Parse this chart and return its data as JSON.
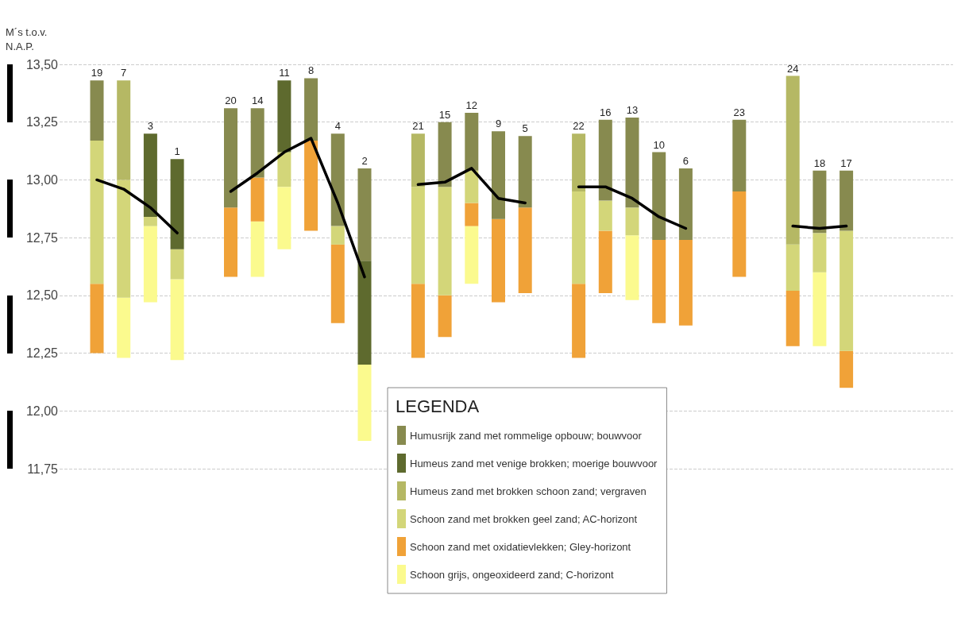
{
  "chart_data": {
    "type": "bar",
    "ylabel": "M´s t.o.v.\nN.A.P.",
    "legend_title": "LEGENDA",
    "categories": [
      "19",
      "7",
      "3",
      "1",
      null,
      "20",
      "14",
      "11",
      "8",
      "4",
      "2",
      null,
      "21",
      "15",
      "12",
      "9",
      "5",
      null,
      "22",
      "16",
      "13",
      "10",
      "6",
      null,
      "23",
      null,
      "24",
      "18",
      "17"
    ],
    "series": [
      {
        "name": "Schoon grijs, ongeoxideerd zand; C-horizont",
        "color": "#fbfa8e",
        "values": [
          null,
          0.26,
          0.33,
          0.35,
          null,
          null,
          0.24,
          0.27,
          null,
          null,
          0.33,
          null,
          null,
          null,
          0.25,
          null,
          null,
          null,
          null,
          null,
          0.28,
          null,
          null,
          null,
          null,
          null,
          null,
          0.32,
          null
        ],
        "base": [
          null,
          12.23,
          12.47,
          12.22,
          null,
          null,
          12.58,
          12.7,
          null,
          null,
          11.87,
          null,
          null,
          null,
          12.55,
          null,
          null,
          null,
          null,
          null,
          12.48,
          null,
          null,
          null,
          null,
          null,
          null,
          12.28,
          null
        ]
      },
      {
        "name": "Schoon zand met oxidatievlekken; Gley-horizont",
        "color": "#f0a238",
        "values": [
          0.3,
          null,
          null,
          null,
          null,
          0.3,
          0.19,
          null,
          0.39,
          0.34,
          null,
          null,
          0.32,
          0.18,
          0.1,
          0.36,
          0.37,
          null,
          0.32,
          0.27,
          null,
          0.36,
          0.37,
          null,
          0.37,
          null,
          0.24,
          null,
          0.16
        ],
        "base": [
          12.25,
          null,
          null,
          null,
          null,
          12.58,
          12.82,
          null,
          12.78,
          12.38,
          null,
          null,
          12.23,
          12.32,
          12.8,
          12.47,
          12.51,
          null,
          12.23,
          12.51,
          null,
          12.38,
          12.37,
          null,
          12.58,
          null,
          12.28,
          null,
          12.1
        ]
      },
      {
        "name": "Schoon zand met brokken geel zand; AC-horizont",
        "color": "#d3d679",
        "values": [
          0.62,
          0.51,
          0.04,
          0.13,
          null,
          null,
          null,
          0.15,
          null,
          0.08,
          null,
          null,
          0.42,
          0.47,
          0.14,
          null,
          null,
          null,
          0.4,
          0.13,
          0.12,
          null,
          null,
          null,
          null,
          null,
          0.2,
          0.17,
          0.52
        ],
        "base": [
          12.55,
          12.49,
          12.8,
          12.57,
          null,
          null,
          null,
          12.97,
          null,
          12.72,
          null,
          null,
          12.55,
          12.5,
          12.9,
          null,
          null,
          null,
          12.55,
          12.78,
          12.76,
          null,
          null,
          null,
          null,
          null,
          12.52,
          12.6,
          12.26
        ]
      },
      {
        "name": "Humeus zand met brokken schoon zand; vergraven",
        "color": "#b5b864",
        "values": [
          null,
          0.43,
          null,
          null,
          null,
          null,
          null,
          null,
          null,
          null,
          null,
          null,
          0.23,
          null,
          null,
          null,
          null,
          null,
          0.25,
          null,
          null,
          null,
          null,
          null,
          null,
          null,
          0.73,
          null,
          null
        ],
        "base": [
          null,
          13.0,
          null,
          null,
          null,
          null,
          null,
          null,
          null,
          null,
          null,
          null,
          12.97,
          null,
          null,
          null,
          null,
          null,
          12.95,
          null,
          null,
          null,
          null,
          null,
          null,
          null,
          12.72,
          null,
          null
        ]
      },
      {
        "name": "Humeus zand met venige brokken; moerige bouwvoor",
        "color": "#5e6a2e",
        "values": [
          null,
          null,
          0.36,
          0.39,
          null,
          null,
          null,
          0.31,
          null,
          null,
          0.45,
          null,
          null,
          null,
          null,
          null,
          null,
          null,
          null,
          null,
          null,
          null,
          null,
          null,
          null,
          null,
          null,
          null,
          null
        ],
        "base": [
          null,
          null,
          12.84,
          12.7,
          null,
          null,
          null,
          13.12,
          null,
          null,
          12.2,
          null,
          null,
          null,
          null,
          null,
          null,
          null,
          null,
          null,
          null,
          null,
          null,
          null,
          null,
          null,
          null,
          null,
          null
        ]
      },
      {
        "name": "Humusrijk zand met rommelige opbouw; bouwvoor",
        "color": "#878a4f",
        "values": [
          0.26,
          null,
          null,
          null,
          null,
          0.43,
          0.3,
          null,
          0.27,
          0.4,
          0.4,
          null,
          null,
          0.28,
          0.25,
          0.38,
          0.31,
          null,
          null,
          0.35,
          0.39,
          0.38,
          0.31,
          null,
          0.31,
          null,
          null,
          0.27,
          0.26
        ],
        "base": [
          13.17,
          null,
          null,
          null,
          null,
          12.88,
          13.01,
          null,
          13.17,
          12.8,
          12.65,
          null,
          null,
          12.97,
          13.04,
          12.83,
          12.88,
          null,
          null,
          12.91,
          12.88,
          12.74,
          12.74,
          null,
          12.95,
          null,
          null,
          12.77,
          12.78
        ]
      },
      {
        "type": "line",
        "color": "#000000",
        "values": [
          13.0,
          12.96,
          12.88,
          12.77,
          null,
          12.95,
          13.03,
          13.12,
          13.18,
          12.9,
          12.58,
          null,
          12.98,
          12.99,
          13.05,
          12.92,
          12.9,
          null,
          12.97,
          12.97,
          12.92,
          12.84,
          12.79,
          null,
          null,
          null,
          12.8,
          12.79,
          12.8
        ]
      }
    ],
    "ylim": [
      11.75,
      13.5
    ],
    "yticks": [
      {
        "value": 11.75,
        "label": "11,75"
      },
      {
        "value": 12,
        "label": "12,00"
      },
      {
        "value": 12.25,
        "label": "12,25"
      },
      {
        "value": 12.5,
        "label": "12,50"
      },
      {
        "value": 12.75,
        "label": "12,75"
      },
      {
        "value": 13,
        "label": "13,00"
      },
      {
        "value": 13.25,
        "label": "13,25"
      },
      {
        "value": 13.5,
        "label": "13,50"
      }
    ],
    "grid": "y",
    "legend": "bottom",
    "marker": "none",
    "line_style": "solid"
  }
}
